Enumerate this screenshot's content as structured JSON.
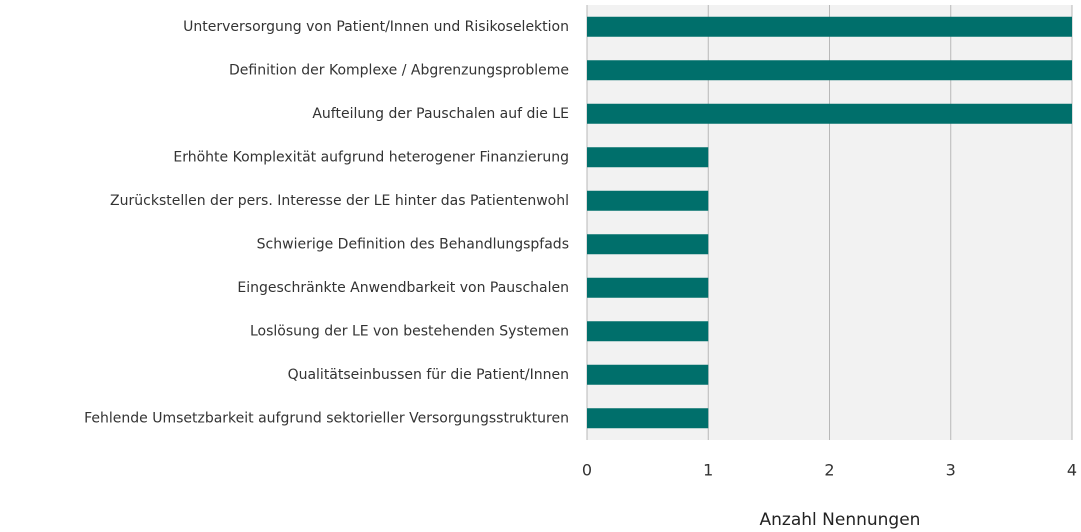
{
  "chart_data": {
    "type": "bar",
    "orientation": "horizontal",
    "categories": [
      "Unterversorgung von Patient/Innen und Risikoselektion",
      "Definition der Komplexe / Abgrenzungsprobleme",
      "Aufteilung der Pauschalen auf die LE",
      "Erhöhte Komplexität aufgrund heterogener Finanzierung",
      "Zurückstellen der pers. Interesse der LE hinter das Patientenwohl",
      "Schwierige Definition des Behandlungspfads",
      "Eingeschränkte Anwendbarkeit von Pauschalen",
      "Loslösung der LE von bestehenden Systemen",
      "Qualitätseinbussen für die Patient/Innen",
      "Fehlende Umsetzbarkeit aufgrund sektorieller Versorgungsstrukturen"
    ],
    "values": [
      4,
      4,
      4,
      1,
      1,
      1,
      1,
      1,
      1,
      1
    ],
    "color": "#006f6b",
    "xlabel": "Anzahl Nennungen",
    "xlim": [
      0,
      4
    ],
    "xticks": [
      0,
      1,
      2,
      3,
      4
    ],
    "grid": true
  }
}
